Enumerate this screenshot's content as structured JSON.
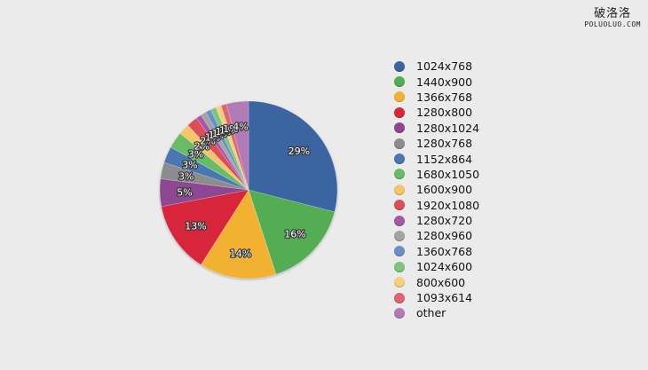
{
  "watermark": {
    "line1": "破洛洛",
    "line2": "POLUOLUO.COM"
  },
  "chart_data": {
    "type": "pie",
    "title": "",
    "legend_position": "right",
    "categories": [
      "1024x768",
      "1440x900",
      "1366x768",
      "1280x800",
      "1280x1024",
      "1280x768",
      "1152x864",
      "1680x1050",
      "1600x900",
      "1920x1080",
      "1280x720",
      "1280x960",
      "1360x768",
      "1024x600",
      "800x600",
      "1093x614",
      "other"
    ],
    "values": [
      29,
      16,
      14,
      13,
      5,
      3,
      3,
      3,
      2,
      2,
      1,
      1,
      1,
      1,
      1,
      1,
      4
    ],
    "labels": [
      "29%",
      "16%",
      "14%",
      "13%",
      "5%",
      "3%",
      "3%",
      "3%",
      "2%",
      "2%",
      "1%",
      "1%",
      "1%",
      "1%",
      "1%",
      "1%",
      "4%"
    ],
    "colors": [
      "#3a65a0",
      "#52ad52",
      "#f2b133",
      "#d7283a",
      "#8e4691",
      "#8c8c8c",
      "#4a77b4",
      "#67bc67",
      "#f4c56a",
      "#dd4d58",
      "#a35aa6",
      "#a3a3a3",
      "#6b90c6",
      "#7dc67d",
      "#f6d07e",
      "#e06470",
      "#b27ab6"
    ]
  }
}
